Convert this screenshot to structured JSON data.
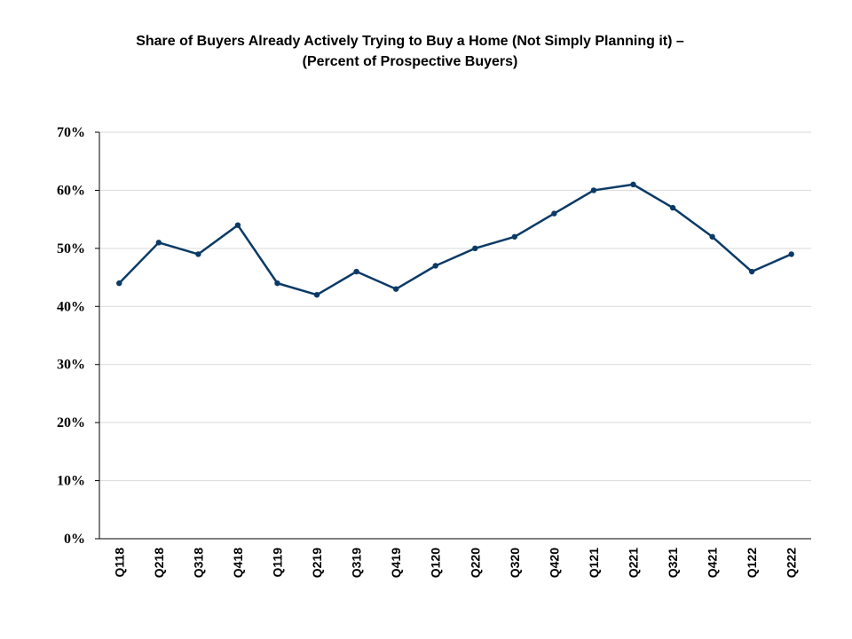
{
  "chart_data": {
    "type": "line",
    "title": "Share of Buyers Already Actively Trying to Buy a Home (Not Simply Planning it) –",
    "subtitle": "(Percent of Prospective Buyers)",
    "xlabel": "",
    "ylabel": "",
    "categories": [
      "Q118",
      "Q218",
      "Q318",
      "Q418",
      "Q119",
      "Q219",
      "Q319",
      "Q419",
      "Q120",
      "Q220",
      "Q320",
      "Q420",
      "Q121",
      "Q221",
      "Q321",
      "Q421",
      "Q122",
      "Q222"
    ],
    "series": [
      {
        "values": [
          44,
          51,
          49,
          54,
          44,
          42,
          46,
          43,
          47,
          50,
          52,
          56,
          60,
          61,
          57,
          52,
          46,
          49
        ]
      }
    ],
    "ylim": [
      0,
      70
    ],
    "y_ticks": [
      0,
      10,
      20,
      30,
      40,
      50,
      60,
      70
    ],
    "y_tick_labels": [
      "0%",
      "10%",
      "20%",
      "30%",
      "40%",
      "50%",
      "60%",
      "70%"
    ],
    "grid": true,
    "legend": "none",
    "line_color": "#0b3a66"
  }
}
